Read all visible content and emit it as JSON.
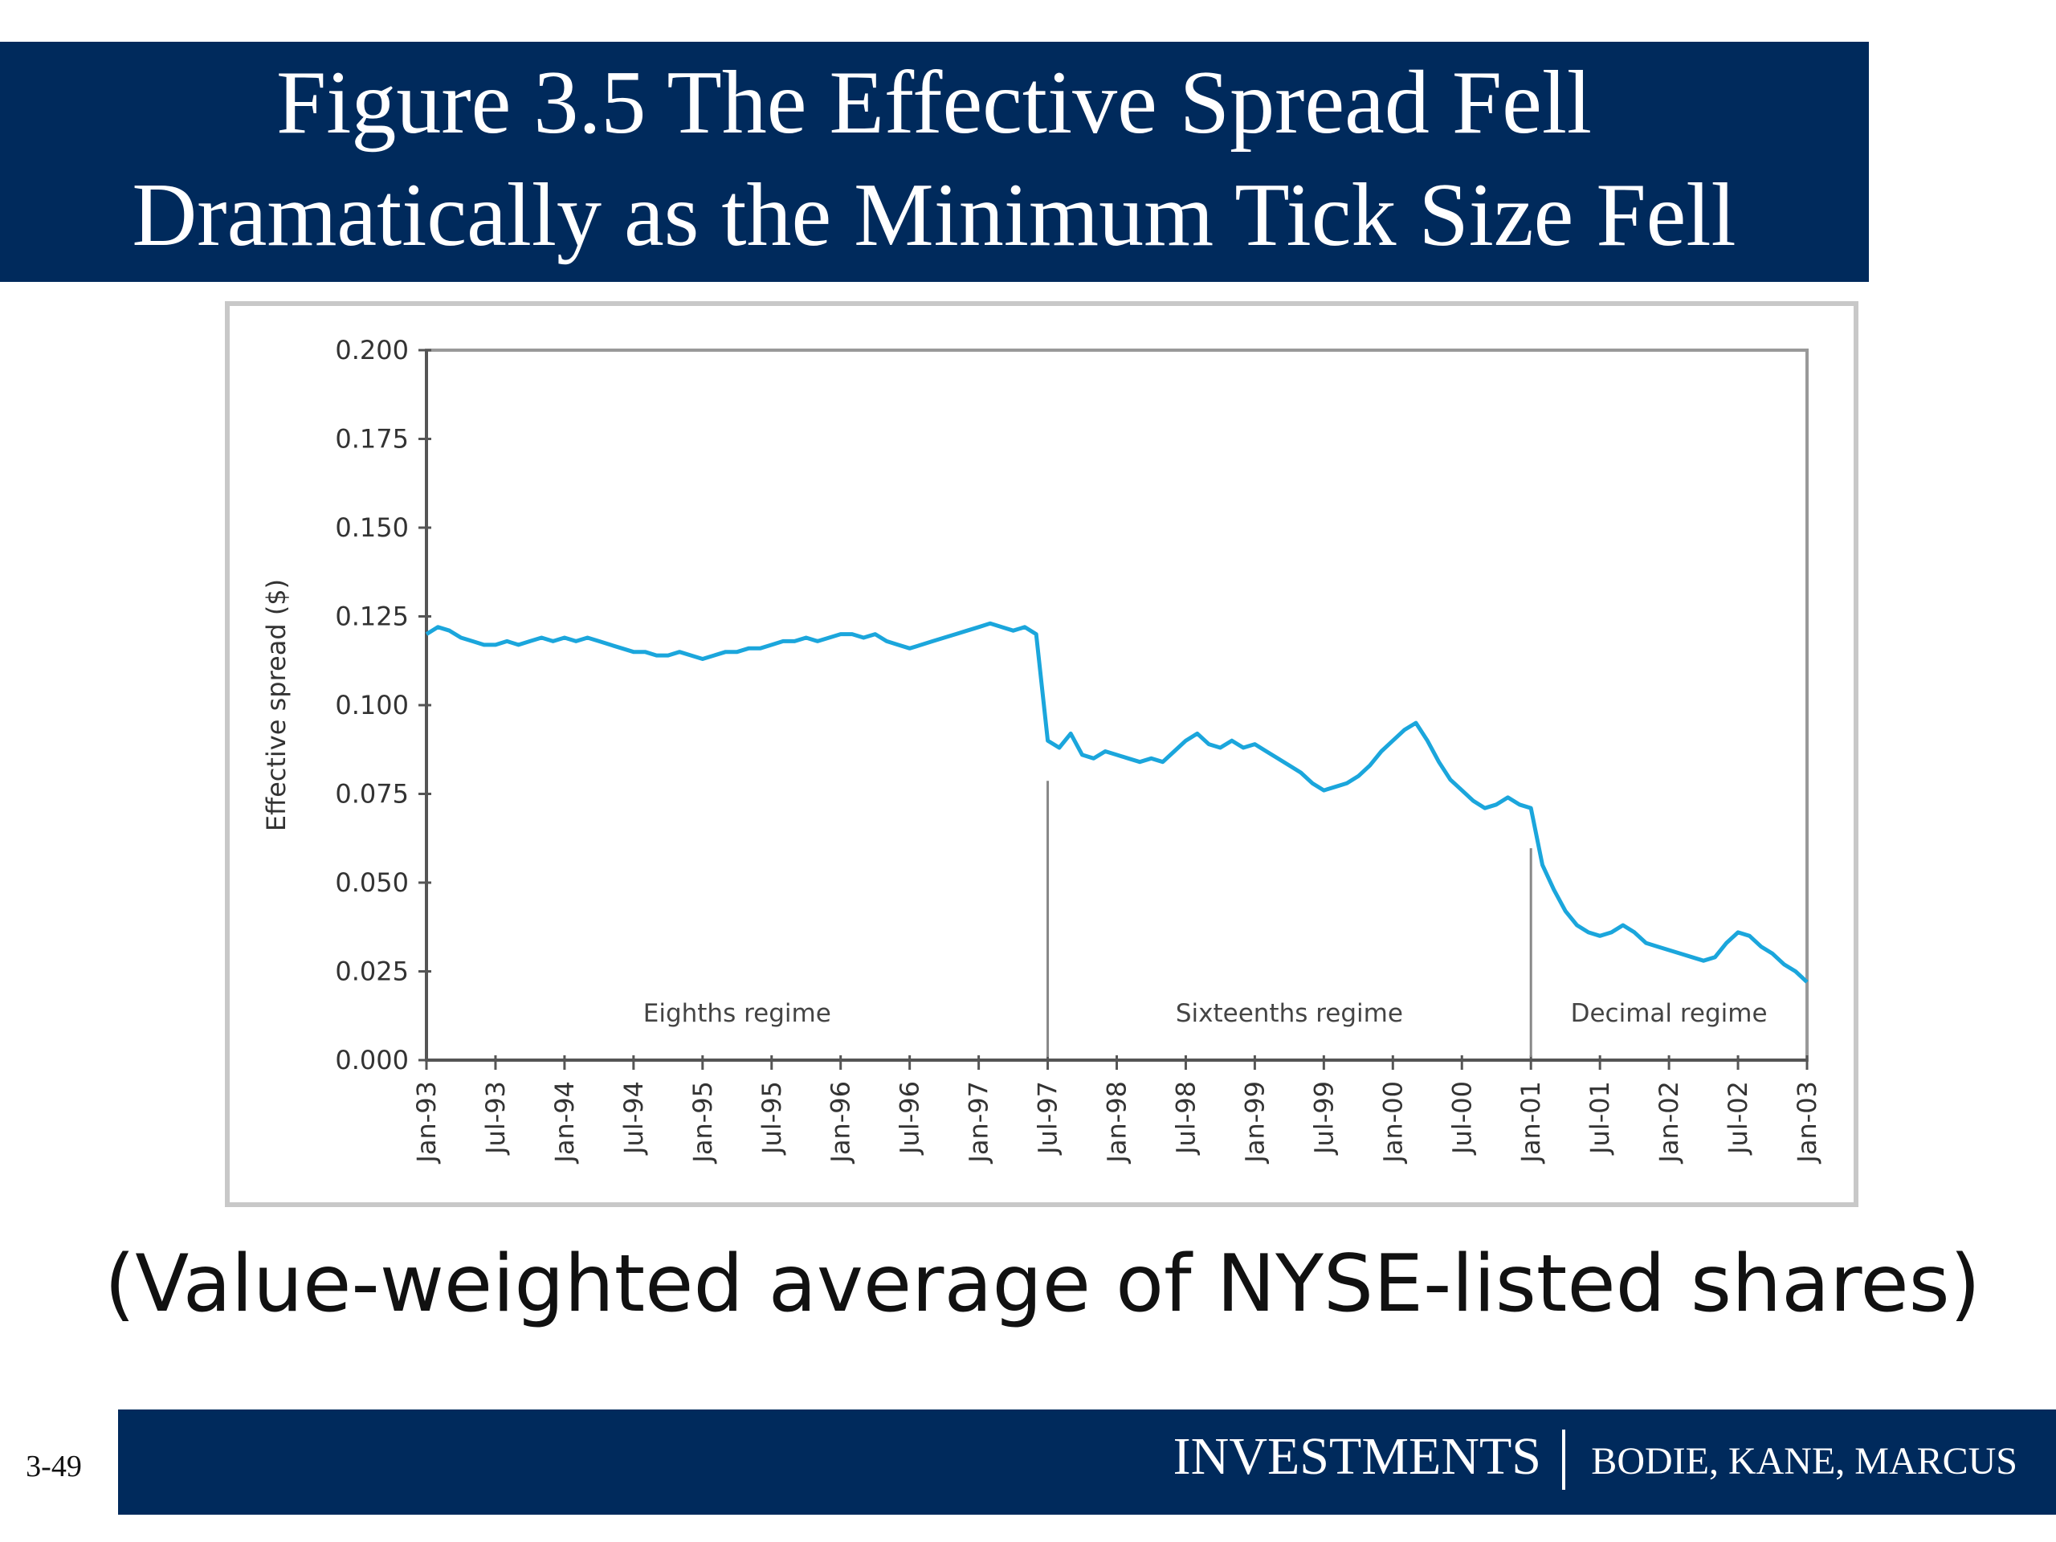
{
  "header": {
    "title_lines": [
      "Figure 3.5 The Effective Spread Fell",
      "Dramatically as the Minimum Tick Size Fell"
    ]
  },
  "chart_data": {
    "type": "line",
    "ylabel": "Effective spread ($)",
    "x": [
      "1993-01",
      "1993-02",
      "1993-03",
      "1993-04",
      "1993-05",
      "1993-06",
      "1993-07",
      "1993-08",
      "1993-09",
      "1993-10",
      "1993-11",
      "1993-12",
      "1994-01",
      "1994-02",
      "1994-03",
      "1994-04",
      "1994-05",
      "1994-06",
      "1994-07",
      "1994-08",
      "1994-09",
      "1994-10",
      "1994-11",
      "1994-12",
      "1995-01",
      "1995-02",
      "1995-03",
      "1995-04",
      "1995-05",
      "1995-06",
      "1995-07",
      "1995-08",
      "1995-09",
      "1995-10",
      "1995-11",
      "1995-12",
      "1996-01",
      "1996-02",
      "1996-03",
      "1996-04",
      "1996-05",
      "1996-06",
      "1996-07",
      "1996-08",
      "1996-09",
      "1996-10",
      "1996-11",
      "1996-12",
      "1997-01",
      "1997-02",
      "1997-03",
      "1997-04",
      "1997-05",
      "1997-06",
      "1997-07",
      "1997-08",
      "1997-09",
      "1997-10",
      "1997-11",
      "1997-12",
      "1998-01",
      "1998-02",
      "1998-03",
      "1998-04",
      "1998-05",
      "1998-06",
      "1998-07",
      "1998-08",
      "1998-09",
      "1998-10",
      "1998-11",
      "1998-12",
      "1999-01",
      "1999-02",
      "1999-03",
      "1999-04",
      "1999-05",
      "1999-06",
      "1999-07",
      "1999-08",
      "1999-09",
      "1999-10",
      "1999-11",
      "1999-12",
      "2000-01",
      "2000-02",
      "2000-03",
      "2000-04",
      "2000-05",
      "2000-06",
      "2000-07",
      "2000-08",
      "2000-09",
      "2000-10",
      "2000-11",
      "2000-12",
      "2001-01",
      "2001-02",
      "2001-03",
      "2001-04",
      "2001-05",
      "2001-06",
      "2001-07",
      "2001-08",
      "2001-09",
      "2001-10",
      "2001-11",
      "2001-12",
      "2002-01",
      "2002-02",
      "2002-03",
      "2002-04",
      "2002-05",
      "2002-06",
      "2002-07",
      "2002-08",
      "2002-09",
      "2002-10",
      "2002-11",
      "2002-12",
      "2003-01"
    ],
    "series": [
      {
        "name": "Effective spread",
        "color": "#1ba6dc",
        "values": [
          0.12,
          0.122,
          0.121,
          0.119,
          0.118,
          0.117,
          0.117,
          0.118,
          0.117,
          0.118,
          0.119,
          0.118,
          0.119,
          0.118,
          0.119,
          0.118,
          0.117,
          0.116,
          0.115,
          0.115,
          0.114,
          0.114,
          0.115,
          0.114,
          0.113,
          0.114,
          0.115,
          0.115,
          0.116,
          0.116,
          0.117,
          0.118,
          0.118,
          0.119,
          0.118,
          0.119,
          0.12,
          0.12,
          0.119,
          0.12,
          0.118,
          0.117,
          0.116,
          0.117,
          0.118,
          0.119,
          0.12,
          0.121,
          0.122,
          0.123,
          0.122,
          0.121,
          0.122,
          0.12,
          0.09,
          0.088,
          0.092,
          0.086,
          0.085,
          0.087,
          0.086,
          0.085,
          0.084,
          0.085,
          0.084,
          0.087,
          0.09,
          0.092,
          0.089,
          0.088,
          0.09,
          0.088,
          0.089,
          0.087,
          0.085,
          0.083,
          0.081,
          0.078,
          0.076,
          0.077,
          0.078,
          0.08,
          0.083,
          0.087,
          0.09,
          0.093,
          0.095,
          0.09,
          0.084,
          0.079,
          0.076,
          0.073,
          0.071,
          0.072,
          0.074,
          0.072,
          0.071,
          0.055,
          0.048,
          0.042,
          0.038,
          0.036,
          0.035,
          0.036,
          0.038,
          0.036,
          0.033,
          0.032,
          0.031,
          0.03,
          0.029,
          0.028,
          0.029,
          0.033,
          0.036,
          0.035,
          0.032,
          0.03,
          0.027,
          0.025,
          0.022
        ]
      }
    ],
    "ylim": [
      0,
      0.2
    ],
    "yticks": [
      {
        "value": 0,
        "label": "0.000"
      },
      0.025,
      {
        "value": 0.05,
        "label": "0.050"
      },
      0.075,
      {
        "value": 0.1,
        "label": "0.100"
      },
      0.125,
      {
        "value": 0.15,
        "label": "0.150"
      },
      0.175,
      {
        "value": 0.2,
        "label": "0.200"
      }
    ],
    "xticks": [
      {
        "value": "1993-01",
        "label": "Jan-93"
      },
      {
        "value": "1993-07",
        "label": "Jul-93"
      },
      {
        "value": "1994-01",
        "label": "Jan-94"
      },
      {
        "value": "1994-07",
        "label": "Jul-94"
      },
      {
        "value": "1995-01",
        "label": "Jan-95"
      },
      {
        "value": "1995-07",
        "label": "Jul-95"
      },
      {
        "value": "1996-01",
        "label": "Jan-96"
      },
      {
        "value": "1996-07",
        "label": "Jul-96"
      },
      {
        "value": "1997-01",
        "label": "Jan-97"
      },
      {
        "value": "1997-07",
        "label": "Jul-97"
      },
      {
        "value": "1998-01",
        "label": "Jan-98"
      },
      {
        "value": "1998-07",
        "label": "Jul-98"
      },
      {
        "value": "1999-01",
        "label": "Jan-99"
      },
      {
        "value": "1999-07",
        "label": "Jul-99"
      },
      {
        "value": "2000-01",
        "label": "Jan-00"
      },
      {
        "value": "2000-07",
        "label": "Jul-00"
      },
      {
        "value": "2001-01",
        "label": "Jan-01"
      },
      {
        "value": "2001-07",
        "label": "Jul-01"
      },
      {
        "value": "2002-01",
        "label": "Jan-02"
      },
      {
        "value": "2002-07",
        "label": "Jul-02"
      },
      {
        "value": "2003-01",
        "label": "Jan-03"
      }
    ],
    "regime_changes": [
      "1997-07",
      "2001-01"
    ],
    "regimes": [
      "Eighths regime",
      "Sixteenths regime",
      "Decimal regime"
    ],
    "grid": false
  },
  "caption": "(Value-weighted average of NYSE-listed shares)",
  "footer": {
    "page": "3-49",
    "brand": "INVESTMENTS",
    "authors": "BODIE, KANE, MARCUS"
  }
}
